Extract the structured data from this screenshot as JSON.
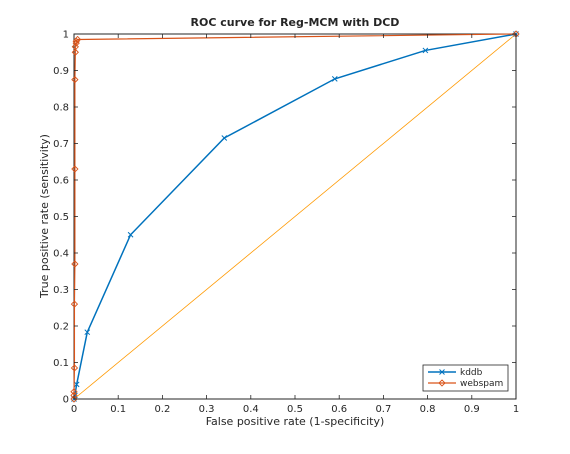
{
  "chart_data": {
    "type": "line",
    "title": "ROC curve for Reg-MCM with DCD",
    "xlabel": "False positive rate (1-specificity)",
    "ylabel": "True positive rate (sensitivity)",
    "xlim": [
      0,
      1
    ],
    "ylim": [
      0,
      1
    ],
    "xticks": [
      0,
      0.1,
      0.2,
      0.3,
      0.4,
      0.5,
      0.6,
      0.7,
      0.8,
      0.9,
      1
    ],
    "yticks": [
      0,
      0.1,
      0.2,
      0.3,
      0.4,
      0.5,
      0.6,
      0.7,
      0.8,
      0.9,
      1
    ],
    "xtick_labels": [
      "0",
      "0.1",
      "0.2",
      "0.3",
      "0.4",
      "0.5",
      "0.6",
      "0.7",
      "0.8",
      "0.9",
      "1"
    ],
    "ytick_labels": [
      "0",
      "0.1",
      "0.2",
      "0.3",
      "0.4",
      "0.5",
      "0.6",
      "0.7",
      "0.8",
      "0.9",
      "1"
    ],
    "grid": false,
    "legend_position": "bottom-right",
    "reference_line": {
      "x": [
        0,
        1
      ],
      "y": [
        0,
        1
      ],
      "color": "#ff9900"
    },
    "series": [
      {
        "name": "kddb",
        "marker": "x",
        "color": "#0072bd",
        "x": [
          0,
          0.002,
          0.006,
          0.03,
          0.128,
          0.34,
          0.59,
          0.795,
          1.0
        ],
        "y": [
          0,
          0.01,
          0.04,
          0.183,
          0.45,
          0.715,
          0.877,
          0.955,
          1.0
        ]
      },
      {
        "name": "webspam",
        "marker": "diamond",
        "color": "#d95319",
        "x": [
          0,
          0,
          0,
          0.001,
          0.001,
          0.002,
          0.002,
          0.002,
          0.003,
          0.003,
          0.005,
          0.005,
          0.008,
          1.0
        ],
        "y": [
          0,
          0.01,
          0.02,
          0.085,
          0.26,
          0.37,
          0.63,
          0.875,
          0.95,
          0.965,
          0.975,
          0.98,
          0.985,
          1.0
        ]
      }
    ]
  }
}
